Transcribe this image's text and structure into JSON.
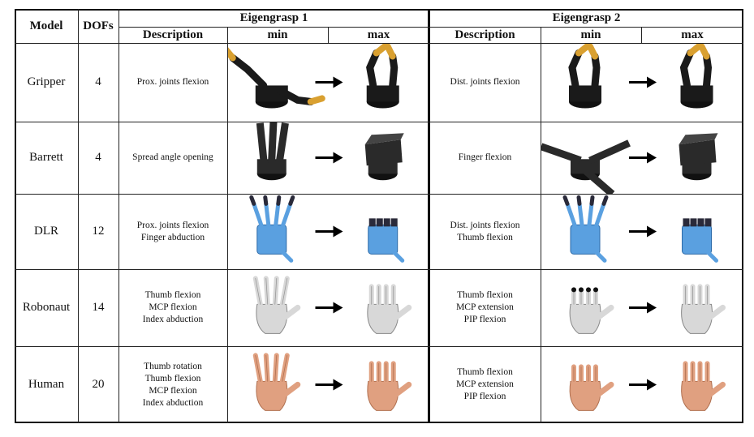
{
  "headers": {
    "model": "Model",
    "dofs": "DOFs",
    "eigengrasp1": "Eigengrasp 1",
    "eigengrasp2": "Eigengrasp 2",
    "description": "Description",
    "min": "min",
    "max": "max"
  },
  "rows": [
    {
      "model": "Gripper",
      "dofs": "4",
      "e1": [
        "Prox. joints flexion"
      ],
      "e2": [
        "Dist. joints flexion"
      ],
      "style": "gripper"
    },
    {
      "model": "Barrett",
      "dofs": "4",
      "e1": [
        "Spread angle opening"
      ],
      "e2": [
        "Finger flexion"
      ],
      "style": "barrett"
    },
    {
      "model": "DLR",
      "dofs": "12",
      "e1": [
        "Prox. joints flexion",
        "Finger abduction"
      ],
      "e2": [
        "Dist. joints flexion",
        "Thumb flexion"
      ],
      "style": "dlr"
    },
    {
      "model": "Robonaut",
      "dofs": "14",
      "e1": [
        "Thumb flexion",
        "MCP flexion",
        "Index abduction"
      ],
      "e2": [
        "Thumb flexion",
        "MCP extension",
        "PIP flexion"
      ],
      "style": "robonaut"
    },
    {
      "model": "Human",
      "dofs": "20",
      "e1": [
        "Thumb rotation",
        "Thumb flexion",
        "MCP flexion",
        "Index abduction"
      ],
      "e2": [
        "Thumb flexion",
        "MCP extension",
        "PIP flexion"
      ],
      "style": "human"
    }
  ],
  "palette": {
    "gripper": {
      "body": "#1a1a1a",
      "tip": "#d9a030"
    },
    "barrett": {
      "body": "#2a2a2a",
      "tip": "#555555"
    },
    "dlr": {
      "body": "#5aa0e0",
      "tip": "#2a2a3a"
    },
    "robonaut": {
      "body": "#d8d8d8",
      "tip": "#999999"
    },
    "human": {
      "body": "#e0a080",
      "tip": "#a06048"
    }
  },
  "icons": {
    "transition": "arrow-right-icon"
  }
}
